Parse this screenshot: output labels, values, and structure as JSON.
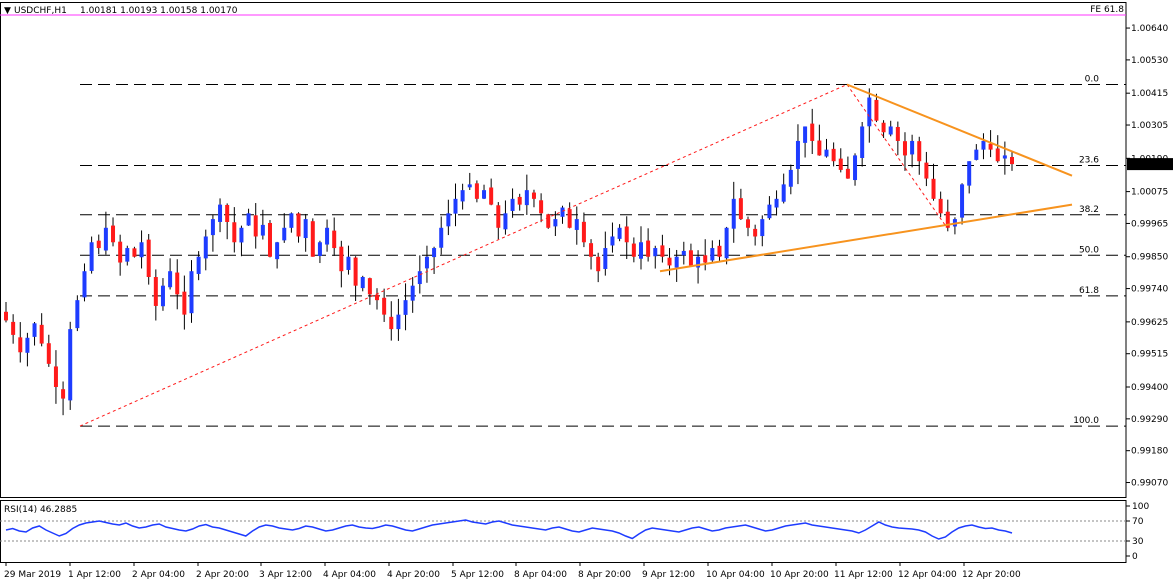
{
  "header": {
    "arrow": "▼",
    "symbol": "USDCHF,H1",
    "ohlc": "1.00181 1.00193 1.00158 1.00170",
    "fe_label": "FE 61.8"
  },
  "colors": {
    "bull": "#1e3cff",
    "bear": "#ff1a1a",
    "wick": "#000000",
    "fib_line": "#000000",
    "fe_line": "#ff33ff",
    "trend": "#f7931e",
    "fib_diag": "#ff1a1a",
    "rsi": "#1e3cff",
    "price_box": "#000000"
  },
  "chart_data": [
    {
      "type": "candlestick",
      "title": "USDCHF,H1",
      "current_price_label": "1.00170",
      "y_ticks": [
        "1.00640",
        "1.00530",
        "1.00415",
        "1.00305",
        "1.00190",
        "1.00075",
        "0.99965",
        "0.99850",
        "0.99740",
        "0.99625",
        "0.99515",
        "0.99400",
        "0.99290",
        "0.99180",
        "0.99070"
      ],
      "x_ticks": [
        "29 Mar 2019",
        "1 Apr 12:00",
        "2 Apr 04:00",
        "2 Apr 20:00",
        "3 Apr 12:00",
        "4 Apr 04:00",
        "4 Apr 20:00",
        "5 Apr 12:00",
        "8 Apr 04:00",
        "8 Apr 20:00",
        "9 Apr 12:00",
        "10 Apr 04:00",
        "10 Apr 20:00",
        "11 Apr 12:00",
        "12 Apr 04:00",
        "12 Apr 20:00"
      ],
      "ylim": [
        0.9902,
        1.0073
      ],
      "fib_levels": [
        {
          "label": "0.0",
          "price": 1.00445
        },
        {
          "label": "23.6",
          "price": 1.00165
        },
        {
          "label": "38.2",
          "price": 0.99995
        },
        {
          "label": "50.0",
          "price": 0.99855
        },
        {
          "label": "61.8",
          "price": 0.99715
        },
        {
          "label": "100.0",
          "price": 0.99265
        }
      ],
      "fe_level": {
        "label": "FE 61.8",
        "price": 1.00685
      },
      "close_path": [
        0.9963,
        0.9958,
        0.9952,
        0.9957,
        0.9962,
        0.9955,
        0.9948,
        0.994,
        0.9936,
        0.996,
        0.997,
        0.998,
        0.999,
        0.9988,
        0.9995,
        0.999,
        0.9983,
        0.9988,
        0.9985,
        0.999,
        0.9978,
        0.9968,
        0.9975,
        0.998,
        0.9972,
        0.9965,
        0.998,
        0.9985,
        0.9992,
        0.9998,
        1.0003,
        0.9997,
        0.999,
        0.9995,
        1.0,
        0.9992,
        0.9996,
        0.9985,
        0.999,
        0.9995,
        1.0,
        0.9992,
        0.9998,
        0.9985,
        0.999,
        0.9995,
        0.9988,
        0.998,
        0.9985,
        0.9975,
        0.9978,
        0.9972,
        0.997,
        0.9965,
        0.996,
        0.9965,
        0.997,
        0.9975,
        0.998,
        0.9985,
        0.9988,
        0.9995,
        1.0,
        1.0005,
        1.0008,
        1.001,
        1.0005,
        1.0008,
        1.0003,
        0.9995,
        1.0,
        1.0005,
        1.0003,
        1.0008,
        1.0005,
        1.0,
        0.9995,
        0.9998,
        1.0002,
        0.9995,
        0.9998,
        0.999,
        0.9985,
        0.998,
        0.9988,
        0.9992,
        0.9995,
        0.999,
        0.9985,
        0.999,
        0.9985,
        0.9988,
        0.9985,
        0.9982,
        0.9985,
        0.9987,
        0.9982,
        0.9985,
        0.9983,
        0.9988,
        0.9985,
        0.9995,
        1.0005,
        0.9998,
        0.9995,
        0.9992,
        0.9998,
        1.0003,
        1.0005,
        1.001,
        1.0015,
        1.0025,
        1.003,
        1.0025,
        1.002,
        1.0022,
        1.0018,
        1.0015,
        1.0012,
        1.002,
        1.003,
        1.004,
        1.0032,
        1.0028,
        1.003,
        1.0025,
        1.002,
        1.0025,
        1.0018,
        1.0012,
        1.0005,
        1.0,
        0.9995,
        0.9998,
        1.001,
        1.0018,
        1.0022,
        1.0025,
        1.0022,
        1.0018,
        1.002,
        1.0017
      ]
    },
    {
      "type": "line",
      "title": "RSI(14) 46.2885",
      "label": "RSI(14)",
      "value_label": "46.2885",
      "y_ticks": [
        "100",
        "70",
        "30",
        "0"
      ],
      "ylim": [
        0,
        100
      ],
      "levels": [
        70,
        30
      ],
      "values": [
        52,
        55,
        50,
        48,
        56,
        60,
        52,
        46,
        40,
        45,
        55,
        62,
        66,
        68,
        70,
        67,
        64,
        62,
        66,
        60,
        56,
        58,
        62,
        64,
        58,
        55,
        52,
        50,
        54,
        60,
        63,
        58,
        56,
        52,
        48,
        44,
        40,
        50,
        58,
        62,
        60,
        56,
        54,
        52,
        55,
        60,
        58,
        54,
        50,
        52,
        56,
        60,
        62,
        58,
        56,
        55,
        58,
        62,
        60,
        56,
        52,
        50,
        54,
        58,
        62,
        64,
        66,
        68,
        70,
        72,
        68,
        66,
        64,
        68,
        70,
        66,
        62,
        60,
        58,
        56,
        54,
        52,
        56,
        58,
        54,
        50,
        48,
        52,
        56,
        54,
        52,
        50,
        46,
        40,
        35,
        44,
        52,
        56,
        54,
        52,
        50,
        48,
        52,
        56,
        58,
        54,
        50,
        52,
        56,
        58,
        60,
        62,
        58,
        54,
        50,
        52,
        56,
        60,
        62,
        64,
        66,
        62,
        60,
        58,
        56,
        54,
        52,
        50,
        46,
        52,
        60,
        68,
        62,
        58,
        56,
        55,
        54,
        52,
        48,
        40,
        34,
        38,
        48,
        56,
        60,
        62,
        58,
        55,
        56,
        52,
        50,
        46
      ]
    }
  ]
}
